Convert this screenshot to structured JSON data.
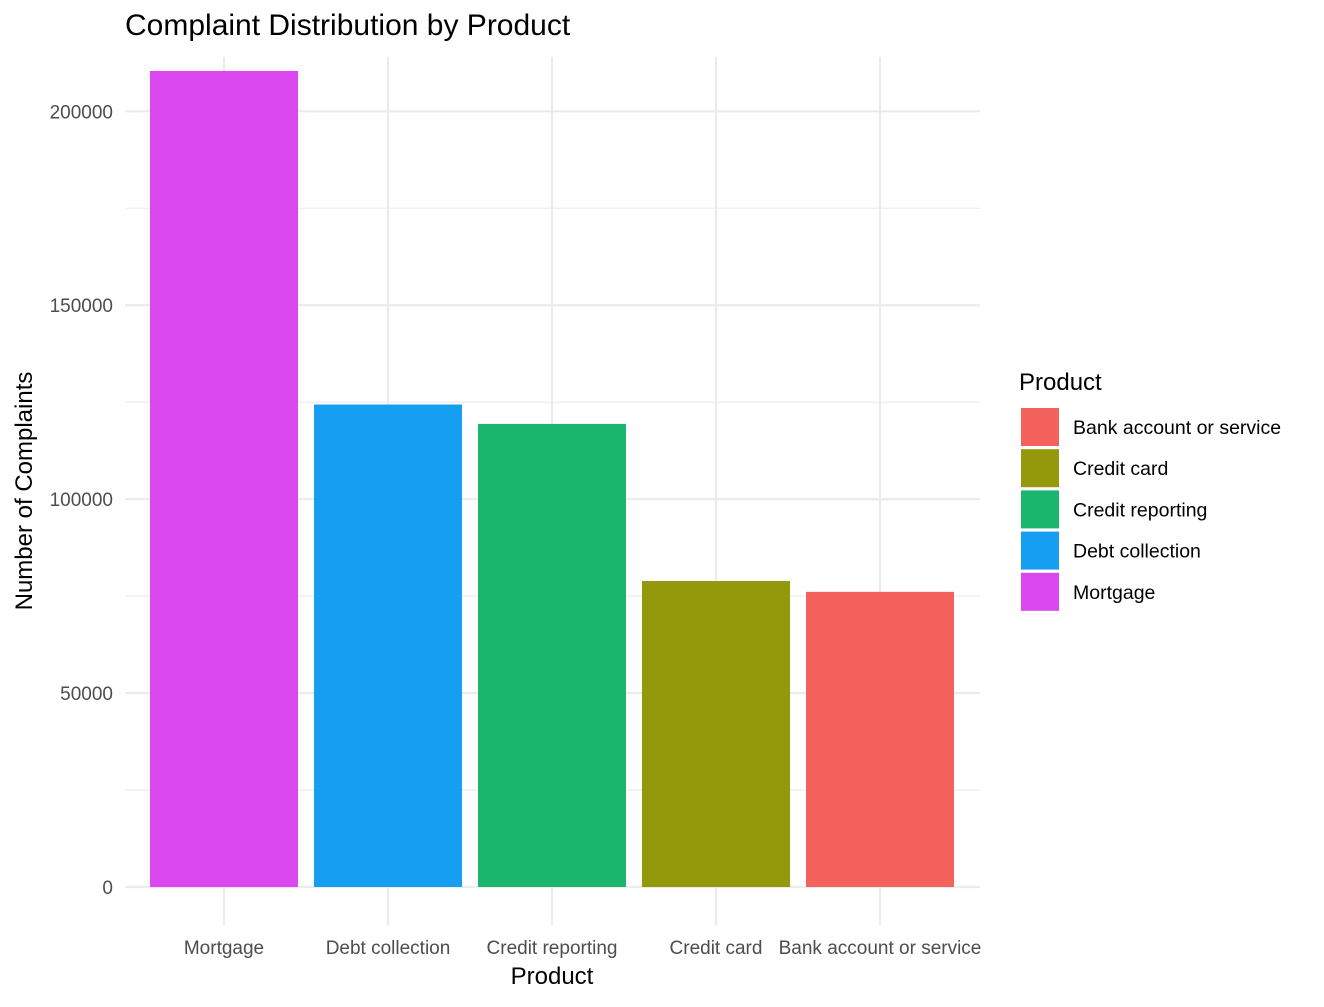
{
  "chart_data": {
    "type": "bar",
    "title": "Complaint Distribution by Product",
    "xlabel": "Product",
    "ylabel": "Number of Complaints",
    "categories": [
      "Mortgage",
      "Debt collection",
      "Credit reporting",
      "Credit card",
      "Bank account or service"
    ],
    "values": [
      210400,
      124400,
      119400,
      78900,
      76100
    ],
    "colors": [
      "#DC48EF",
      "#169FF0",
      "#1AB66D",
      "#93990A",
      "#F3625C"
    ],
    "ylim": [
      0,
      214000
    ],
    "yticks": [
      0,
      50000,
      100000,
      150000,
      200000
    ],
    "ytick_labels": [
      "0",
      "50000",
      "100000",
      "150000",
      "200000"
    ],
    "grid": true,
    "legend": {
      "title": "Product",
      "position": "right",
      "entries": [
        {
          "label": "Bank account or service",
          "color": "#F3625C"
        },
        {
          "label": "Credit card",
          "color": "#93990A"
        },
        {
          "label": "Credit reporting",
          "color": "#1AB66D"
        },
        {
          "label": "Debt collection",
          "color": "#169FF0"
        },
        {
          "label": "Mortgage",
          "color": "#DC48EF"
        }
      ]
    }
  }
}
